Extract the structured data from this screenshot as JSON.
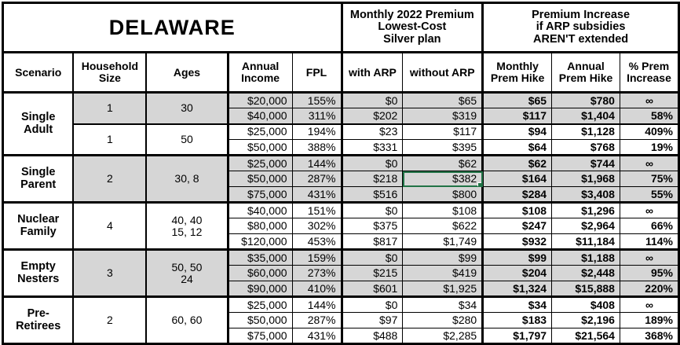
{
  "title": "DELAWARE",
  "header": {
    "monthly_premium_group": "Monthly 2022 Premium\nLowest-Cost\nSilver plan",
    "premium_increase_group": "Premium Increase\nif ARP subsidies\nAREN'T extended",
    "columns": {
      "scenario": "Scenario",
      "household_size": "Household\nSize",
      "ages": "Ages",
      "annual_income": "Annual\nIncome",
      "fpl": "FPL",
      "with_arp": "with ARP",
      "without_arp": "without ARP",
      "monthly_hike": "Monthly\nPrem Hike",
      "annual_hike": "Annual\nPrem Hike",
      "pct_increase": "% Prem\nIncrease"
    }
  },
  "colors": {
    "shaded_row": "#d6d6d6",
    "selection_border": "#217346",
    "grid": "#000000"
  },
  "selected_cell": {
    "value": "$382",
    "row": "Single Parent $50,000",
    "column": "without ARP"
  },
  "groups": [
    {
      "scenario": "Single\nAdult",
      "subgroups": [
        {
          "household_size": "1",
          "ages": "30",
          "shaded": true,
          "rows": [
            {
              "income": "$20,000",
              "fpl": "155%",
              "with_arp": "$0",
              "without_arp": "$65",
              "monthly_hike": "$65",
              "annual_hike": "$780",
              "pct_increase": "∞"
            },
            {
              "income": "$40,000",
              "fpl": "311%",
              "with_arp": "$202",
              "without_arp": "$319",
              "monthly_hike": "$117",
              "annual_hike": "$1,404",
              "pct_increase": "58%"
            }
          ]
        },
        {
          "household_size": "1",
          "ages": "50",
          "shaded": false,
          "rows": [
            {
              "income": "$25,000",
              "fpl": "194%",
              "with_arp": "$23",
              "without_arp": "$117",
              "monthly_hike": "$94",
              "annual_hike": "$1,128",
              "pct_increase": "409%"
            },
            {
              "income": "$50,000",
              "fpl": "388%",
              "with_arp": "$331",
              "without_arp": "$395",
              "monthly_hike": "$64",
              "annual_hike": "$768",
              "pct_increase": "19%"
            }
          ]
        }
      ]
    },
    {
      "scenario": "Single\nParent",
      "subgroups": [
        {
          "household_size": "2",
          "ages": "30, 8",
          "shaded": true,
          "rows": [
            {
              "income": "$25,000",
              "fpl": "144%",
              "with_arp": "$0",
              "without_arp": "$62",
              "monthly_hike": "$62",
              "annual_hike": "$744",
              "pct_increase": "∞"
            },
            {
              "income": "$50,000",
              "fpl": "287%",
              "with_arp": "$218",
              "without_arp": "$382",
              "monthly_hike": "$164",
              "annual_hike": "$1,968",
              "pct_increase": "75%"
            },
            {
              "income": "$75,000",
              "fpl": "431%",
              "with_arp": "$516",
              "without_arp": "$800",
              "monthly_hike": "$284",
              "annual_hike": "$3,408",
              "pct_increase": "55%"
            }
          ]
        }
      ]
    },
    {
      "scenario": "Nuclear\nFamily",
      "subgroups": [
        {
          "household_size": "4",
          "ages": "40, 40\n15, 12",
          "shaded": false,
          "rows": [
            {
              "income": "$40,000",
              "fpl": "151%",
              "with_arp": "$0",
              "without_arp": "$108",
              "monthly_hike": "$108",
              "annual_hike": "$1,296",
              "pct_increase": "∞"
            },
            {
              "income": "$80,000",
              "fpl": "302%",
              "with_arp": "$375",
              "without_arp": "$622",
              "monthly_hike": "$247",
              "annual_hike": "$2,964",
              "pct_increase": "66%"
            },
            {
              "income": "$120,000",
              "fpl": "453%",
              "with_arp": "$817",
              "without_arp": "$1,749",
              "monthly_hike": "$932",
              "annual_hike": "$11,184",
              "pct_increase": "114%"
            }
          ]
        }
      ]
    },
    {
      "scenario": "Empty\nNesters",
      "subgroups": [
        {
          "household_size": "3",
          "ages": "50, 50\n24",
          "shaded": true,
          "rows": [
            {
              "income": "$35,000",
              "fpl": "159%",
              "with_arp": "$0",
              "without_arp": "$99",
              "monthly_hike": "$99",
              "annual_hike": "$1,188",
              "pct_increase": "∞"
            },
            {
              "income": "$60,000",
              "fpl": "273%",
              "with_arp": "$215",
              "without_arp": "$419",
              "monthly_hike": "$204",
              "annual_hike": "$2,448",
              "pct_increase": "95%"
            },
            {
              "income": "$90,000",
              "fpl": "410%",
              "with_arp": "$601",
              "without_arp": "$1,925",
              "monthly_hike": "$1,324",
              "annual_hike": "$15,888",
              "pct_increase": "220%"
            }
          ]
        }
      ]
    },
    {
      "scenario": "Pre-\nRetirees",
      "subgroups": [
        {
          "household_size": "2",
          "ages": "60, 60",
          "shaded": false,
          "rows": [
            {
              "income": "$25,000",
              "fpl": "144%",
              "with_arp": "$0",
              "without_arp": "$34",
              "monthly_hike": "$34",
              "annual_hike": "$408",
              "pct_increase": "∞"
            },
            {
              "income": "$50,000",
              "fpl": "287%",
              "with_arp": "$97",
              "without_arp": "$280",
              "monthly_hike": "$183",
              "annual_hike": "$2,196",
              "pct_increase": "189%"
            },
            {
              "income": "$75,000",
              "fpl": "431%",
              "with_arp": "$488",
              "without_arp": "$2,285",
              "monthly_hike": "$1,797",
              "annual_hike": "$21,564",
              "pct_increase": "368%"
            }
          ]
        }
      ]
    }
  ]
}
